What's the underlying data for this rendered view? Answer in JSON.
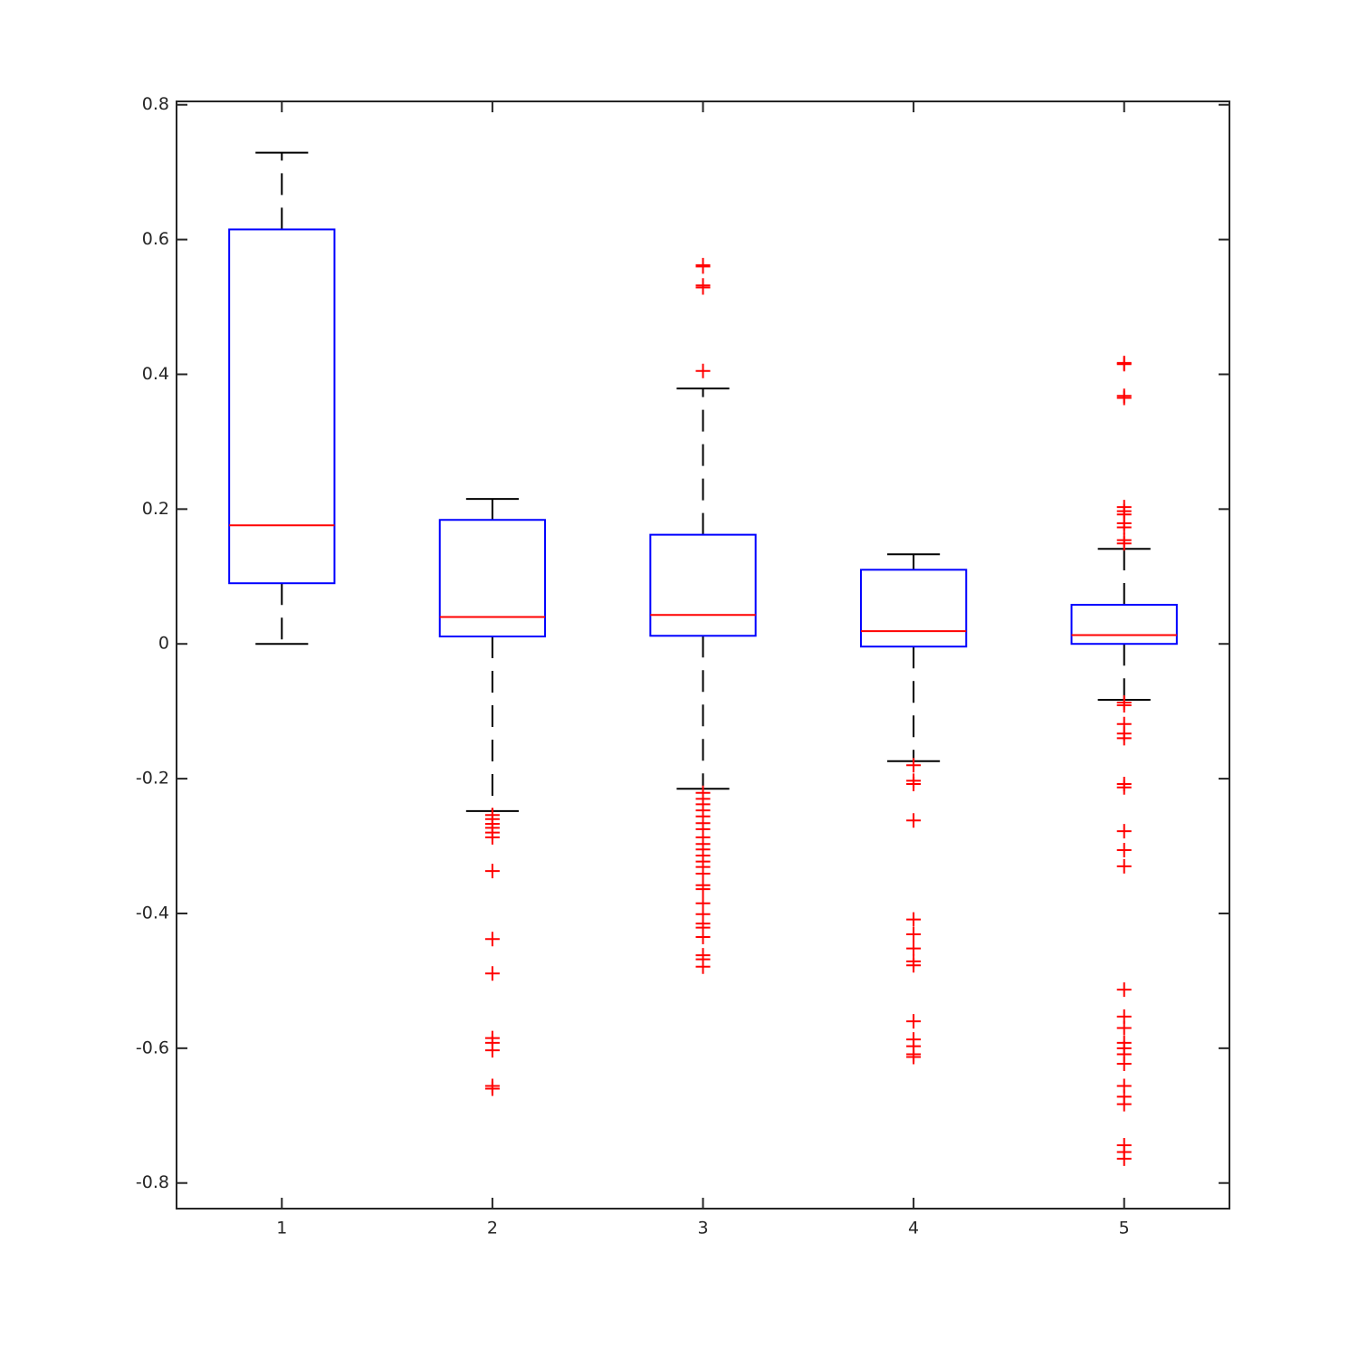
{
  "chart_data": {
    "type": "box",
    "x": [
      1,
      2,
      3,
      4,
      5
    ],
    "xlim": [
      0.5,
      5.5
    ],
    "xticks": [
      1,
      2,
      3,
      4,
      5
    ],
    "ylim": [
      -0.838,
      0.805
    ],
    "yticks": [
      -0.8,
      -0.6,
      -0.4,
      -0.2,
      0,
      0.2,
      0.4,
      0.6,
      0.8
    ],
    "box_color": "#0000ff",
    "median_color": "#ff0000",
    "whisker_color": "#000000",
    "outlier_color": "#ff0000",
    "boxes": [
      {
        "whisker_low": 0,
        "q1": 0.09,
        "median": 0.176,
        "q3": 0.615,
        "whisker_high": 0.729,
        "outliers": []
      },
      {
        "whisker_low": -0.248,
        "q1": 0.011,
        "median": 0.04,
        "q3": 0.184,
        "whisker_high": 0.215,
        "outliers": [
          -0.254,
          -0.26,
          -0.267,
          -0.273,
          -0.28,
          -0.287,
          -0.337,
          -0.438,
          -0.489,
          -0.585,
          -0.592,
          -0.603,
          -0.656,
          -0.66
        ]
      },
      {
        "whisker_low": -0.215,
        "q1": 0.012,
        "median": 0.043,
        "q3": 0.162,
        "whisker_high": 0.379,
        "outliers": [
          0.562,
          0.56,
          0.532,
          0.529,
          0.405,
          -0.221,
          -0.23,
          -0.238,
          -0.247,
          -0.256,
          -0.266,
          -0.275,
          -0.287,
          -0.297,
          -0.305,
          -0.314,
          -0.323,
          -0.331,
          -0.341,
          -0.358,
          -0.364,
          -0.385,
          -0.401,
          -0.415,
          -0.421,
          -0.435,
          -0.462,
          -0.468,
          -0.479
        ]
      },
      {
        "whisker_low": -0.174,
        "q1": -0.004,
        "median": 0.019,
        "q3": 0.11,
        "whisker_high": 0.133,
        "outliers": [
          -0.18,
          -0.203,
          -0.208,
          -0.262,
          -0.409,
          -0.431,
          -0.452,
          -0.471,
          -0.477,
          -0.56,
          -0.587,
          -0.597,
          -0.609,
          -0.613
        ]
      },
      {
        "whisker_low": -0.083,
        "q1": 0,
        "median": 0.013,
        "q3": 0.058,
        "whisker_high": 0.141,
        "outliers": [
          0.417,
          0.415,
          0.368,
          0.365,
          0.203,
          0.197,
          0.192,
          0.179,
          0.173,
          0.154,
          0.149,
          -0.087,
          -0.091,
          -0.119,
          -0.133,
          -0.14,
          -0.208,
          -0.213,
          -0.278,
          -0.306,
          -0.33,
          -0.513,
          -0.553,
          -0.57,
          -0.592,
          -0.6,
          -0.609,
          -0.623,
          -0.656,
          -0.672,
          -0.683,
          -0.744,
          -0.754,
          -0.764
        ]
      }
    ]
  }
}
